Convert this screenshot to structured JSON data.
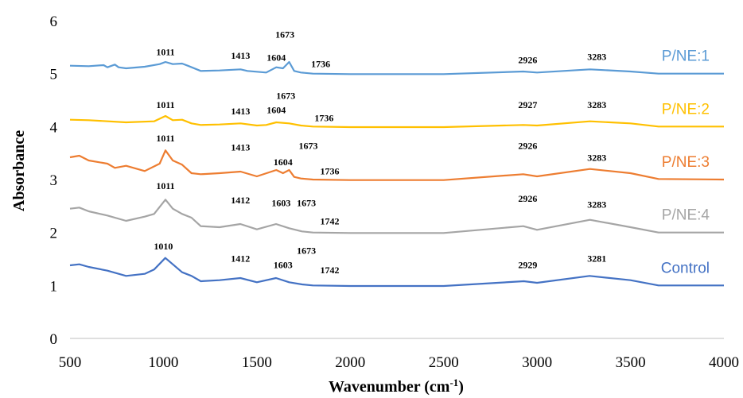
{
  "chart_data": {
    "type": "line",
    "xlabel_main": "Wavenumber (cm",
    "xlabel_sup": "-1",
    "xlabel_end": ")",
    "ylabel": "Absorbance",
    "xlim": [
      500,
      4000
    ],
    "ylim": [
      0,
      6
    ],
    "xticks": [
      "500",
      "1000",
      "1500",
      "2000",
      "2500",
      "3000",
      "3500",
      "4000"
    ],
    "yticks": [
      "0",
      "1",
      "2",
      "3",
      "4",
      "5",
      "6"
    ],
    "grid": false,
    "legend_placement": "right, at end of each line",
    "series": [
      {
        "name": "P/NE:1",
        "color": "#5B9BD5",
        "x": [
          500,
          600,
          680,
          700,
          740,
          760,
          800,
          900,
          980,
          1011,
          1050,
          1100,
          1130,
          1200,
          1300,
          1413,
          1450,
          1550,
          1604,
          1640,
          1673,
          1700,
          1736,
          1800,
          2000,
          2500,
          2926,
          3000,
          3283,
          3500,
          3650,
          4000
        ],
        "y": [
          5.15,
          5.14,
          5.16,
          5.12,
          5.17,
          5.12,
          5.1,
          5.13,
          5.18,
          5.22,
          5.18,
          5.19,
          5.15,
          5.05,
          5.06,
          5.08,
          5.05,
          5.02,
          5.12,
          5.1,
          5.22,
          5.05,
          5.02,
          5.0,
          4.99,
          4.99,
          5.04,
          5.02,
          5.08,
          5.04,
          5.0,
          5.0
        ],
        "peak_labels": [
          {
            "text": "1011",
            "x": 1011,
            "y": 5.35
          },
          {
            "text": "1413",
            "x": 1413,
            "y": 5.28
          },
          {
            "text": "1604",
            "x": 1604,
            "y": 5.24
          },
          {
            "text": "1673",
            "x": 1650,
            "y": 5.68
          },
          {
            "text": "1736",
            "x": 1842,
            "y": 5.12
          },
          {
            "text": "2926",
            "x": 2950,
            "y": 5.2
          },
          {
            "text": "3283",
            "x": 3320,
            "y": 5.26
          }
        ]
      },
      {
        "name": "P/NE:2",
        "color": "#FFC000",
        "x": [
          500,
          600,
          800,
          950,
          1011,
          1050,
          1100,
          1150,
          1200,
          1300,
          1413,
          1500,
          1550,
          1604,
          1673,
          1736,
          1800,
          2000,
          2500,
          2927,
          3000,
          3283,
          3500,
          3650,
          4000
        ],
        "y": [
          4.13,
          4.12,
          4.08,
          4.1,
          4.2,
          4.12,
          4.13,
          4.06,
          4.03,
          4.04,
          4.06,
          4.02,
          4.03,
          4.08,
          4.06,
          4.02,
          4.0,
          3.99,
          3.99,
          4.03,
          4.02,
          4.1,
          4.06,
          4.0,
          4.0
        ],
        "peak_labels": [
          {
            "text": "1011",
            "x": 1011,
            "y": 4.35
          },
          {
            "text": "1413",
            "x": 1413,
            "y": 4.23
          },
          {
            "text": "1604",
            "x": 1604,
            "y": 4.25
          },
          {
            "text": "1673",
            "x": 1655,
            "y": 4.52
          },
          {
            "text": "1736",
            "x": 1860,
            "y": 4.1
          },
          {
            "text": "2927",
            "x": 2950,
            "y": 4.35
          },
          {
            "text": "3283",
            "x": 3320,
            "y": 4.35
          }
        ]
      },
      {
        "name": "P/NE:3",
        "color": "#ED7D31",
        "x": [
          500,
          550,
          600,
          700,
          740,
          800,
          900,
          980,
          1011,
          1050,
          1100,
          1150,
          1200,
          1300,
          1413,
          1500,
          1604,
          1640,
          1673,
          1700,
          1736,
          1800,
          2000,
          2500,
          2926,
          3000,
          3283,
          3500,
          3650,
          4000
        ],
        "y": [
          3.42,
          3.45,
          3.36,
          3.3,
          3.22,
          3.26,
          3.16,
          3.3,
          3.55,
          3.36,
          3.28,
          3.12,
          3.1,
          3.12,
          3.15,
          3.06,
          3.18,
          3.12,
          3.18,
          3.05,
          3.02,
          3.0,
          2.99,
          2.99,
          3.1,
          3.06,
          3.2,
          3.12,
          3.01,
          3.0
        ],
        "peak_labels": [
          {
            "text": "1011",
            "x": 1011,
            "y": 3.72
          },
          {
            "text": "1413",
            "x": 1413,
            "y": 3.55
          },
          {
            "text": "1604",
            "x": 1640,
            "y": 3.27
          },
          {
            "text": "1673",
            "x": 1775,
            "y": 3.58
          },
          {
            "text": "1736",
            "x": 1890,
            "y": 3.1
          },
          {
            "text": "2926",
            "x": 2950,
            "y": 3.58
          },
          {
            "text": "3283",
            "x": 3320,
            "y": 3.35
          }
        ]
      },
      {
        "name": "P/NE:4",
        "color": "#A5A5A5",
        "x": [
          500,
          550,
          600,
          700,
          800,
          900,
          950,
          1011,
          1050,
          1100,
          1150,
          1200,
          1300,
          1412,
          1500,
          1603,
          1673,
          1742,
          1800,
          2000,
          2500,
          2926,
          3000,
          3283,
          3500,
          3650,
          4000
        ],
        "y": [
          2.45,
          2.47,
          2.4,
          2.32,
          2.22,
          2.3,
          2.35,
          2.62,
          2.45,
          2.35,
          2.28,
          2.12,
          2.1,
          2.16,
          2.06,
          2.16,
          2.08,
          2.02,
          2.0,
          1.99,
          1.99,
          2.12,
          2.05,
          2.24,
          2.1,
          2.0,
          2.0
        ],
        "peak_labels": [
          {
            "text": "1011",
            "x": 1011,
            "y": 2.82
          },
          {
            "text": "1412",
            "x": 1412,
            "y": 2.55
          },
          {
            "text": "1603",
            "x": 1630,
            "y": 2.5
          },
          {
            "text": "1673",
            "x": 1765,
            "y": 2.5
          },
          {
            "text": "1742",
            "x": 1890,
            "y": 2.15
          },
          {
            "text": "2926",
            "x": 2950,
            "y": 2.58
          },
          {
            "text": "3283",
            "x": 3320,
            "y": 2.47
          }
        ]
      },
      {
        "name": "Control",
        "color": "#4472C4",
        "x": [
          500,
          550,
          600,
          700,
          800,
          900,
          950,
          1010,
          1050,
          1100,
          1150,
          1200,
          1300,
          1412,
          1500,
          1603,
          1673,
          1742,
          1800,
          2000,
          2500,
          2929,
          3000,
          3281,
          3500,
          3650,
          4000
        ],
        "y": [
          1.38,
          1.4,
          1.35,
          1.28,
          1.18,
          1.22,
          1.3,
          1.52,
          1.4,
          1.25,
          1.18,
          1.08,
          1.1,
          1.14,
          1.06,
          1.14,
          1.06,
          1.02,
          1.0,
          0.99,
          0.99,
          1.08,
          1.05,
          1.18,
          1.1,
          1.0,
          1.0
        ],
        "peak_labels": [
          {
            "text": "1010",
            "x": 1000,
            "y": 1.68
          },
          {
            "text": "1412",
            "x": 1412,
            "y": 1.45
          },
          {
            "text": "1603",
            "x": 1640,
            "y": 1.33
          },
          {
            "text": "1673",
            "x": 1765,
            "y": 1.6
          },
          {
            "text": "1742",
            "x": 1890,
            "y": 1.23
          },
          {
            "text": "2929",
            "x": 2950,
            "y": 1.33
          },
          {
            "text": "3281",
            "x": 3320,
            "y": 1.45
          }
        ]
      }
    ]
  }
}
